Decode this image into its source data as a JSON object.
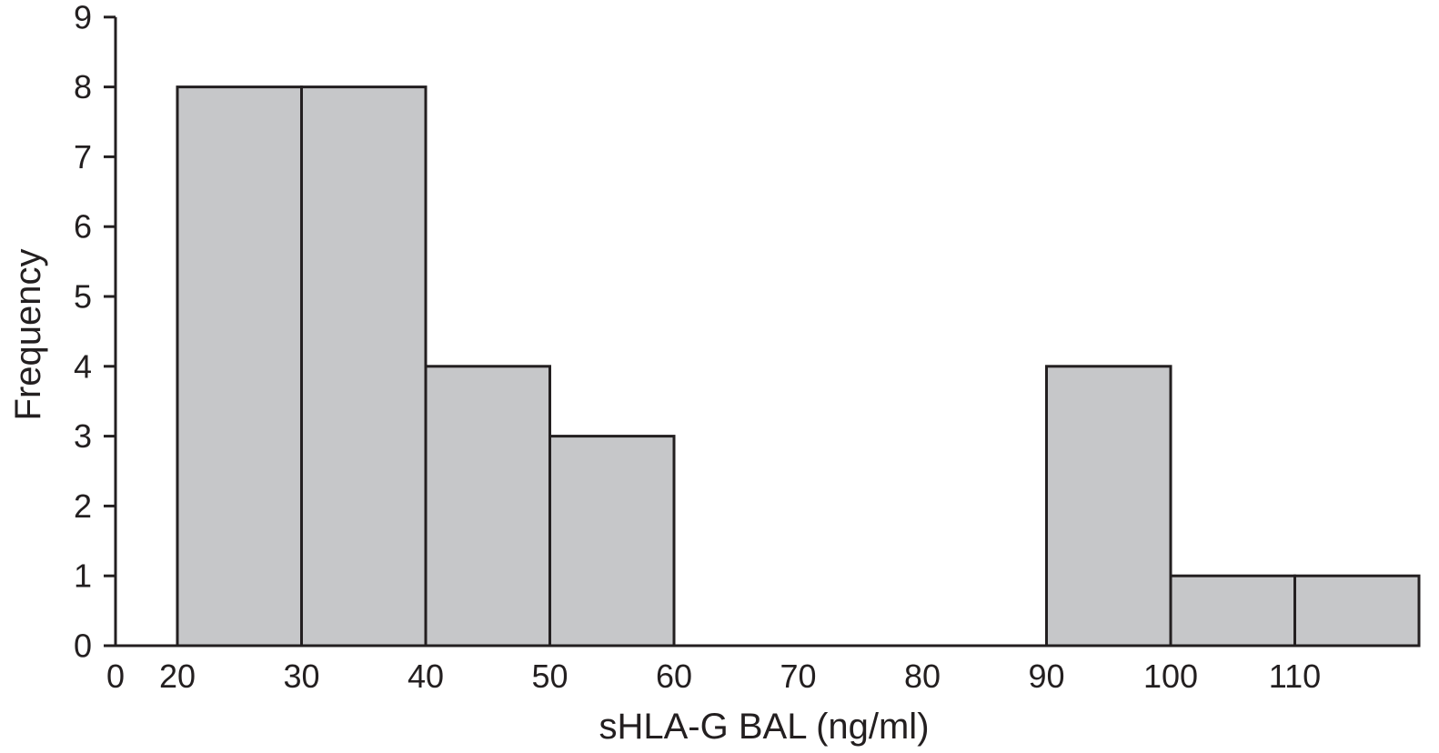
{
  "chart_data": {
    "type": "bar",
    "subtype": "histogram",
    "title": "",
    "xlabel": "sHLA-G BAL (ng/ml)",
    "ylabel": "Frequency",
    "xlim": [
      0,
      120
    ],
    "ylim": [
      0,
      9
    ],
    "xticks": [
      0,
      20,
      30,
      40,
      50,
      60,
      70,
      80,
      90,
      100,
      110
    ],
    "xtick_labels": [
      "0",
      "20",
      "30",
      "40",
      "50",
      "60",
      "70",
      "80",
      "90",
      "100",
      "110"
    ],
    "yticks": [
      0,
      1,
      2,
      3,
      4,
      5,
      6,
      7,
      8,
      9
    ],
    "ytick_labels": [
      "0",
      "1",
      "2",
      "3",
      "4",
      "5",
      "6",
      "7",
      "8",
      "9"
    ],
    "bins": [
      {
        "start": 20,
        "end": 30,
        "value": 8
      },
      {
        "start": 30,
        "end": 40,
        "value": 8
      },
      {
        "start": 40,
        "end": 50,
        "value": 4
      },
      {
        "start": 50,
        "end": 60,
        "value": 3
      },
      {
        "start": 90,
        "end": 100,
        "value": 4
      },
      {
        "start": 100,
        "end": 110,
        "value": 1
      },
      {
        "start": 110,
        "end": 120,
        "value": 1
      }
    ],
    "grid": false,
    "legend": "none",
    "colors": {
      "bar_fill": "#c6c7c9",
      "bar_stroke": "#231f20",
      "axis": "#231f20",
      "text": "#231f20",
      "background": "#ffffff"
    }
  }
}
